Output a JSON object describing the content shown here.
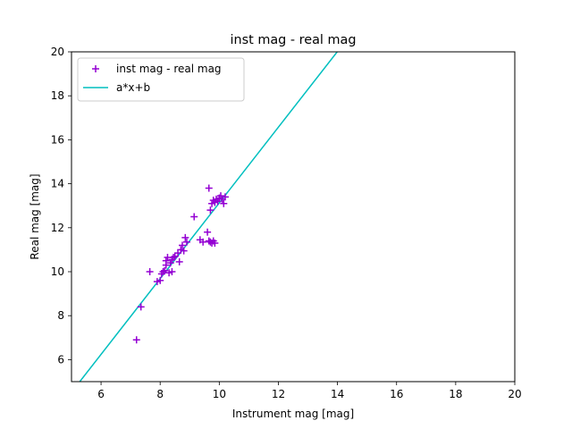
{
  "chart_data": {
    "type": "scatter",
    "title": "inst mag - real mag",
    "xlabel": "Instrument mag [mag]",
    "ylabel": "Real mag [mag]",
    "xlim": [
      5,
      20
    ],
    "ylim": [
      5,
      20
    ],
    "xticks": [
      6,
      8,
      10,
      12,
      14,
      16,
      18,
      20
    ],
    "yticks": [
      6,
      8,
      10,
      12,
      14,
      16,
      18,
      20
    ],
    "grid": false,
    "legend_placement": "top-left",
    "legend": [
      "inst mag - real mag",
      "a*x+b"
    ],
    "series": [
      {
        "name": "inst mag - real mag",
        "marker": "plus",
        "color": "#9400d3",
        "points": [
          [
            7.2,
            6.9
          ],
          [
            7.35,
            8.4
          ],
          [
            7.65,
            10.0
          ],
          [
            7.9,
            9.55
          ],
          [
            8.0,
            9.6
          ],
          [
            8.05,
            9.9
          ],
          [
            8.1,
            10.0
          ],
          [
            8.15,
            10.05
          ],
          [
            8.2,
            10.3
          ],
          [
            8.2,
            10.5
          ],
          [
            8.25,
            10.65
          ],
          [
            8.3,
            9.95
          ],
          [
            8.35,
            10.4
          ],
          [
            8.4,
            10.0
          ],
          [
            8.4,
            10.55
          ],
          [
            8.45,
            10.65
          ],
          [
            8.5,
            10.7
          ],
          [
            8.6,
            10.85
          ],
          [
            8.65,
            10.45
          ],
          [
            8.7,
            11.0
          ],
          [
            8.75,
            11.2
          ],
          [
            8.8,
            10.95
          ],
          [
            8.85,
            11.55
          ],
          [
            8.9,
            11.35
          ],
          [
            9.15,
            12.5
          ],
          [
            9.35,
            11.45
          ],
          [
            9.45,
            11.35
          ],
          [
            9.6,
            11.8
          ],
          [
            9.65,
            13.8
          ],
          [
            9.65,
            11.4
          ],
          [
            9.7,
            12.8
          ],
          [
            9.7,
            11.35
          ],
          [
            9.75,
            13.1
          ],
          [
            9.75,
            11.3
          ],
          [
            9.8,
            13.25
          ],
          [
            9.8,
            11.4
          ],
          [
            9.85,
            13.15
          ],
          [
            9.85,
            11.3
          ],
          [
            9.9,
            13.3
          ],
          [
            9.95,
            13.2
          ],
          [
            10.0,
            13.35
          ],
          [
            10.05,
            13.45
          ],
          [
            10.1,
            13.3
          ],
          [
            10.15,
            13.1
          ],
          [
            10.2,
            13.4
          ]
        ]
      },
      {
        "name": "a*x+b",
        "type": "line",
        "color": "#00bfbf",
        "x": [
          5.28,
          13.99
        ],
        "y": [
          5.0,
          20.0
        ]
      }
    ]
  }
}
